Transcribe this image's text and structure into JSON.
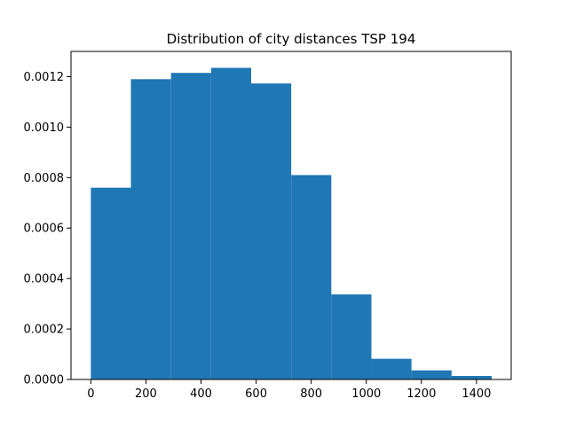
{
  "chart_data": {
    "type": "bar",
    "title": "Distribution of city distances TSP 194",
    "xlabel": "",
    "ylabel": "",
    "bin_edges": [
      0,
      145.5,
      291,
      436.5,
      582,
      727.5,
      873,
      1018.5,
      1164,
      1309.5,
      1455
    ],
    "values": [
      0.00076,
      0.00119,
      0.001215,
      0.001235,
      0.001173,
      0.00081,
      0.000337,
      8.2e-05,
      3.6e-05,
      1.4e-05
    ],
    "xlim": [
      -72,
      1526
    ],
    "ylim": [
      0,
      0.0013
    ],
    "xticks": [
      0,
      200,
      400,
      600,
      800,
      1000,
      1200,
      1400
    ],
    "yticks": [
      0.0,
      0.0002,
      0.0004,
      0.0006,
      0.0008,
      0.001,
      0.0012
    ],
    "xtick_labels": [
      "0",
      "200",
      "400",
      "600",
      "800",
      "1000",
      "1200",
      "1400"
    ],
    "ytick_labels": [
      "0.0000",
      "0.0002",
      "0.0004",
      "0.0006",
      "0.0008",
      "0.0010",
      "0.0012"
    ],
    "grid": false,
    "bar_color": "#1f77b4"
  }
}
